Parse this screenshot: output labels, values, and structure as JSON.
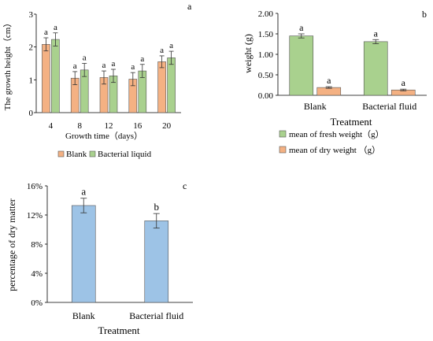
{
  "colors": {
    "blank": "#F4B183",
    "bacterial": "#A9D18E",
    "fresh": "#A9D18E",
    "dry": "#F4B183",
    "percent": "#9DC3E6",
    "bar_stroke": "#555555",
    "axis": "#000000"
  },
  "chart_data": [
    {
      "panel_label": "a",
      "type": "bar",
      "categories": [
        "4",
        "8",
        "12",
        "16",
        "20"
      ],
      "xlabel": "Growth time（days）",
      "ylabel": "The growth height（cm）",
      "ylim": [
        0,
        3
      ],
      "yticks": [
        "0",
        "1",
        "2",
        "3"
      ],
      "grid": false,
      "legend_position": "bottom",
      "series": [
        {
          "name": "Blank",
          "values": [
            2.08,
            1.05,
            1.07,
            1.02,
            1.55
          ],
          "errors": [
            0.2,
            0.2,
            0.2,
            0.2,
            0.18
          ],
          "letters": [
            "a",
            "a",
            "a",
            "a",
            "a"
          ]
        },
        {
          "name": "Bacterial liquid",
          "values": [
            2.23,
            1.3,
            1.12,
            1.27,
            1.67
          ],
          "errors": [
            0.2,
            0.2,
            0.2,
            0.2,
            0.2
          ],
          "letters": [
            "a",
            "a",
            "a",
            "a",
            "a"
          ]
        }
      ]
    },
    {
      "panel_label": "b",
      "type": "bar",
      "categories": [
        "Blank",
        "Bacterial fluid"
      ],
      "xlabel": "Treatment",
      "ylabel": "weight (g)",
      "ylim": [
        0,
        2
      ],
      "yticks": [
        "0.00",
        "0.50",
        "1.00",
        "1.50",
        "2.00"
      ],
      "grid": false,
      "legend_position": "bottom",
      "series": [
        {
          "name": "mean of fresh weight（g）",
          "values": [
            1.45,
            1.31
          ],
          "errors": [
            0.05,
            0.05
          ],
          "letters": [
            "a",
            "a"
          ]
        },
        {
          "name": "mean of dry weight （g）",
          "values": [
            0.19,
            0.13
          ],
          "errors": [
            0.02,
            0.02
          ],
          "letters": [
            "a",
            "a"
          ]
        }
      ]
    },
    {
      "panel_label": "c",
      "type": "bar",
      "categories": [
        "Blank",
        "Bacterial fluid"
      ],
      "xlabel": "Treatment",
      "ylabel": "percentage of dry matter",
      "ylim": [
        0,
        16
      ],
      "yticks": [
        "0%",
        "4%",
        "8%",
        "12%",
        "16%"
      ],
      "grid": false,
      "series": [
        {
          "name": "",
          "values": [
            13.3,
            11.2
          ],
          "errors": [
            1.0,
            1.0
          ],
          "letters": [
            "a",
            "b"
          ]
        }
      ]
    }
  ]
}
